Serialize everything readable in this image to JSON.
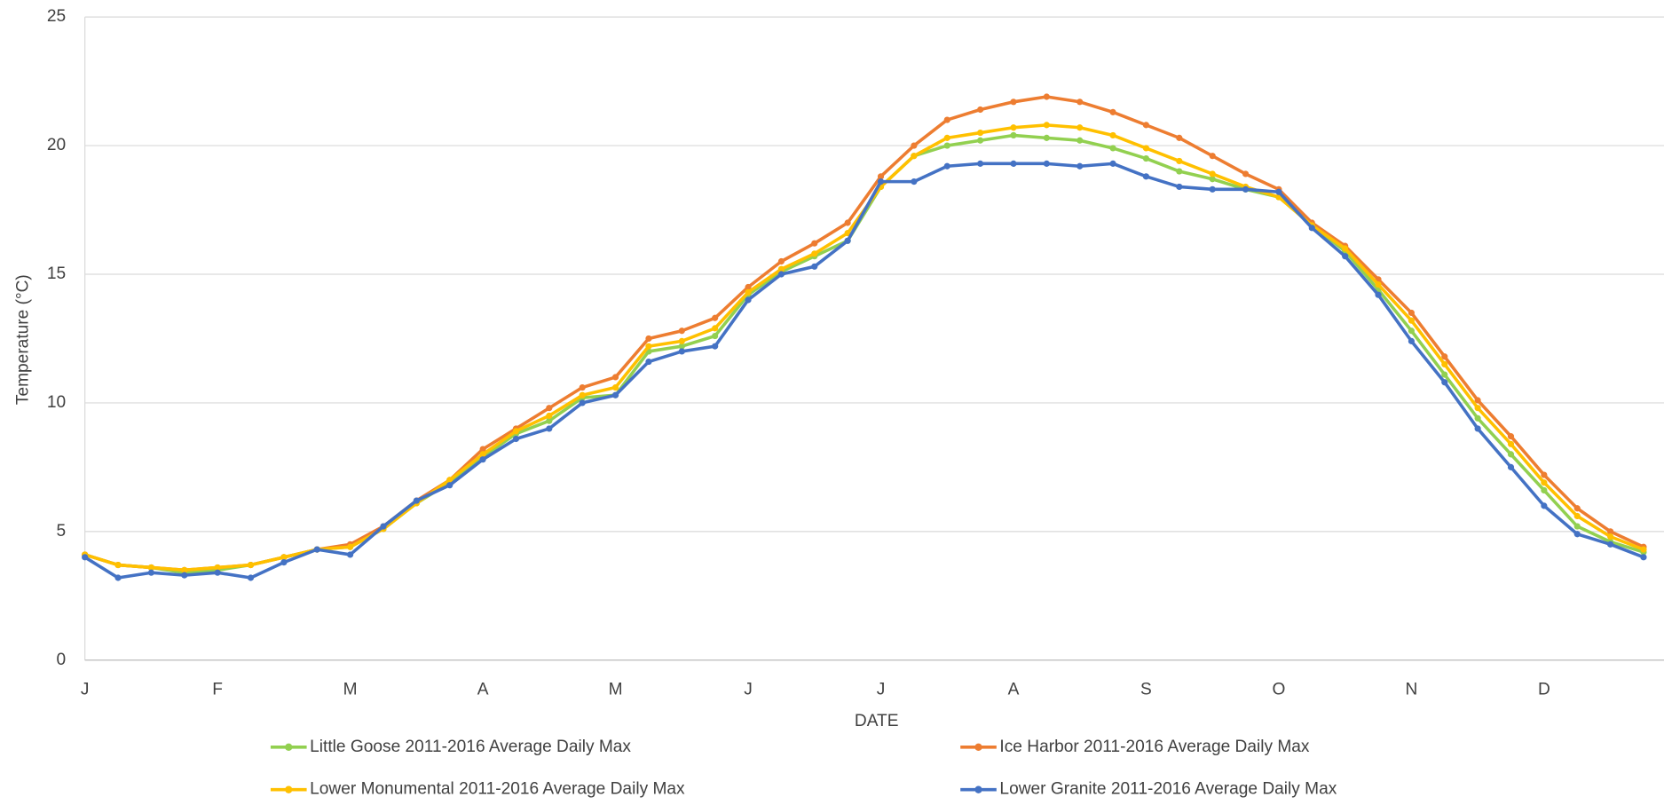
{
  "chart_data": {
    "type": "line",
    "x_label": "DATE",
    "y_label": "Temperature (°C)",
    "categories": [
      "J",
      null,
      null,
      null,
      "F",
      null,
      null,
      null,
      "M",
      null,
      null,
      null,
      "A",
      null,
      null,
      null,
      "M",
      null,
      null,
      null,
      "J",
      null,
      null,
      null,
      "J",
      null,
      null,
      null,
      "A",
      null,
      null,
      null,
      "S",
      null,
      null,
      null,
      "O",
      null,
      null,
      null,
      "N",
      null,
      null,
      null,
      "D",
      null,
      null,
      null
    ],
    "series": [
      {
        "name": "Little Goose 2011-2016 Average Daily Max",
        "color": "#92d050",
        "values": [
          4.1,
          3.7,
          3.6,
          3.4,
          3.5,
          3.7,
          4.0,
          4.3,
          4.4,
          5.1,
          6.1,
          6.9,
          7.9,
          8.8,
          9.3,
          10.2,
          10.3,
          12.0,
          12.2,
          12.6,
          14.2,
          15.1,
          15.7,
          16.3,
          18.4,
          19.6,
          20.0,
          20.2,
          20.4,
          20.3,
          20.2,
          19.9,
          19.5,
          19.0,
          18.7,
          18.3,
          18.0,
          16.9,
          15.9,
          14.4,
          12.8,
          11.1,
          9.4,
          8.0,
          6.6,
          5.2,
          4.6,
          4.2
        ]
      },
      {
        "name": "Ice Harbor 2011-2016 Average Daily Max",
        "color": "#ed7d31",
        "values": [
          4.1,
          3.7,
          3.6,
          3.5,
          3.6,
          3.7,
          4.0,
          4.3,
          4.5,
          5.2,
          6.2,
          7.0,
          8.2,
          9.0,
          9.8,
          10.6,
          11.0,
          12.5,
          12.8,
          13.3,
          14.5,
          15.5,
          16.2,
          17.0,
          18.8,
          20.0,
          21.0,
          21.4,
          21.7,
          21.9,
          21.7,
          21.3,
          20.8,
          20.3,
          19.6,
          18.9,
          18.3,
          17.0,
          16.1,
          14.8,
          13.5,
          11.8,
          10.1,
          8.7,
          7.2,
          5.9,
          5.0,
          4.4
        ]
      },
      {
        "name": "Lower Monumental 2011-2016 Average Daily Max",
        "color": "#ffc000",
        "values": [
          4.1,
          3.7,
          3.6,
          3.5,
          3.6,
          3.7,
          4.0,
          4.3,
          4.4,
          5.1,
          6.1,
          7.0,
          8.0,
          8.9,
          9.5,
          10.3,
          10.6,
          12.2,
          12.4,
          12.9,
          14.3,
          15.2,
          15.8,
          16.6,
          18.4,
          19.6,
          20.3,
          20.5,
          20.7,
          20.8,
          20.7,
          20.4,
          19.9,
          19.4,
          18.9,
          18.4,
          18.0,
          16.9,
          16.0,
          14.6,
          13.2,
          11.5,
          9.8,
          8.4,
          6.9,
          5.6,
          4.8,
          4.3
        ]
      },
      {
        "name": "Lower Granite 2011-2016 Average Daily Max",
        "color": "#4472c4",
        "values": [
          4.0,
          3.2,
          3.4,
          3.3,
          3.4,
          3.2,
          3.8,
          4.3,
          4.1,
          5.2,
          6.2,
          6.8,
          7.8,
          8.6,
          9.0,
          10.0,
          10.3,
          11.6,
          12.0,
          12.2,
          14.0,
          15.0,
          15.3,
          16.3,
          18.6,
          18.6,
          19.2,
          19.3,
          19.3,
          19.3,
          19.2,
          19.3,
          18.8,
          18.4,
          18.3,
          18.3,
          18.2,
          16.8,
          15.7,
          14.2,
          12.4,
          10.8,
          9.0,
          7.5,
          6.0,
          4.9,
          4.5,
          4.0
        ]
      }
    ],
    "ylim": [
      0,
      25
    ],
    "yticks": [
      0,
      5,
      10,
      15,
      20,
      25
    ],
    "grid": true,
    "legend": "bottom"
  }
}
